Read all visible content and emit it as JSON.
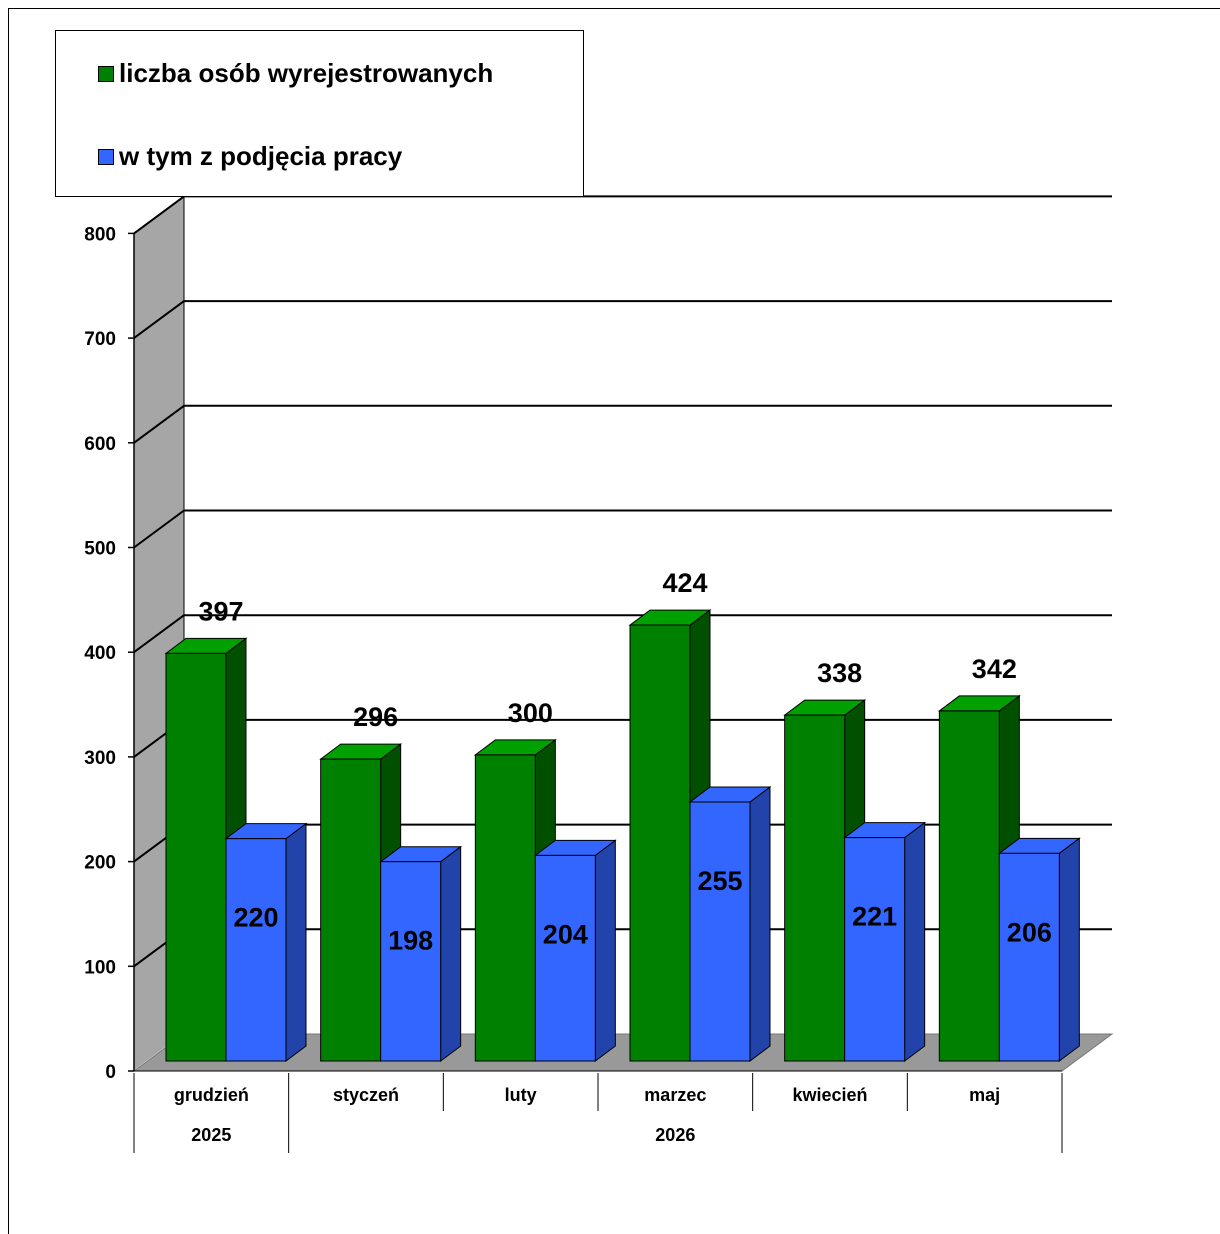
{
  "chart_data": {
    "type": "bar",
    "categories": [
      "grudzień",
      "styczeń",
      "luty",
      "marzec",
      "kwiecień",
      "maj"
    ],
    "category_groups": [
      {
        "label": "2025",
        "span": 1
      },
      {
        "label": "2026",
        "span": 5
      }
    ],
    "series": [
      {
        "name": "liczba osób wyrejestrowanych",
        "color": "#008000",
        "values": [
          397,
          296,
          300,
          424,
          338,
          342
        ]
      },
      {
        "name": "w tym z podjęcia pracy",
        "color": "#3366ff",
        "values": [
          220,
          198,
          204,
          255,
          221,
          206
        ]
      }
    ],
    "ylim": [
      0,
      800
    ],
    "yticks": [
      0,
      100,
      200,
      300,
      400,
      500,
      600,
      700,
      800
    ],
    "grid": true,
    "style": "3d",
    "legend_position": "top-left",
    "title": "",
    "xlabel": "",
    "ylabel": ""
  }
}
